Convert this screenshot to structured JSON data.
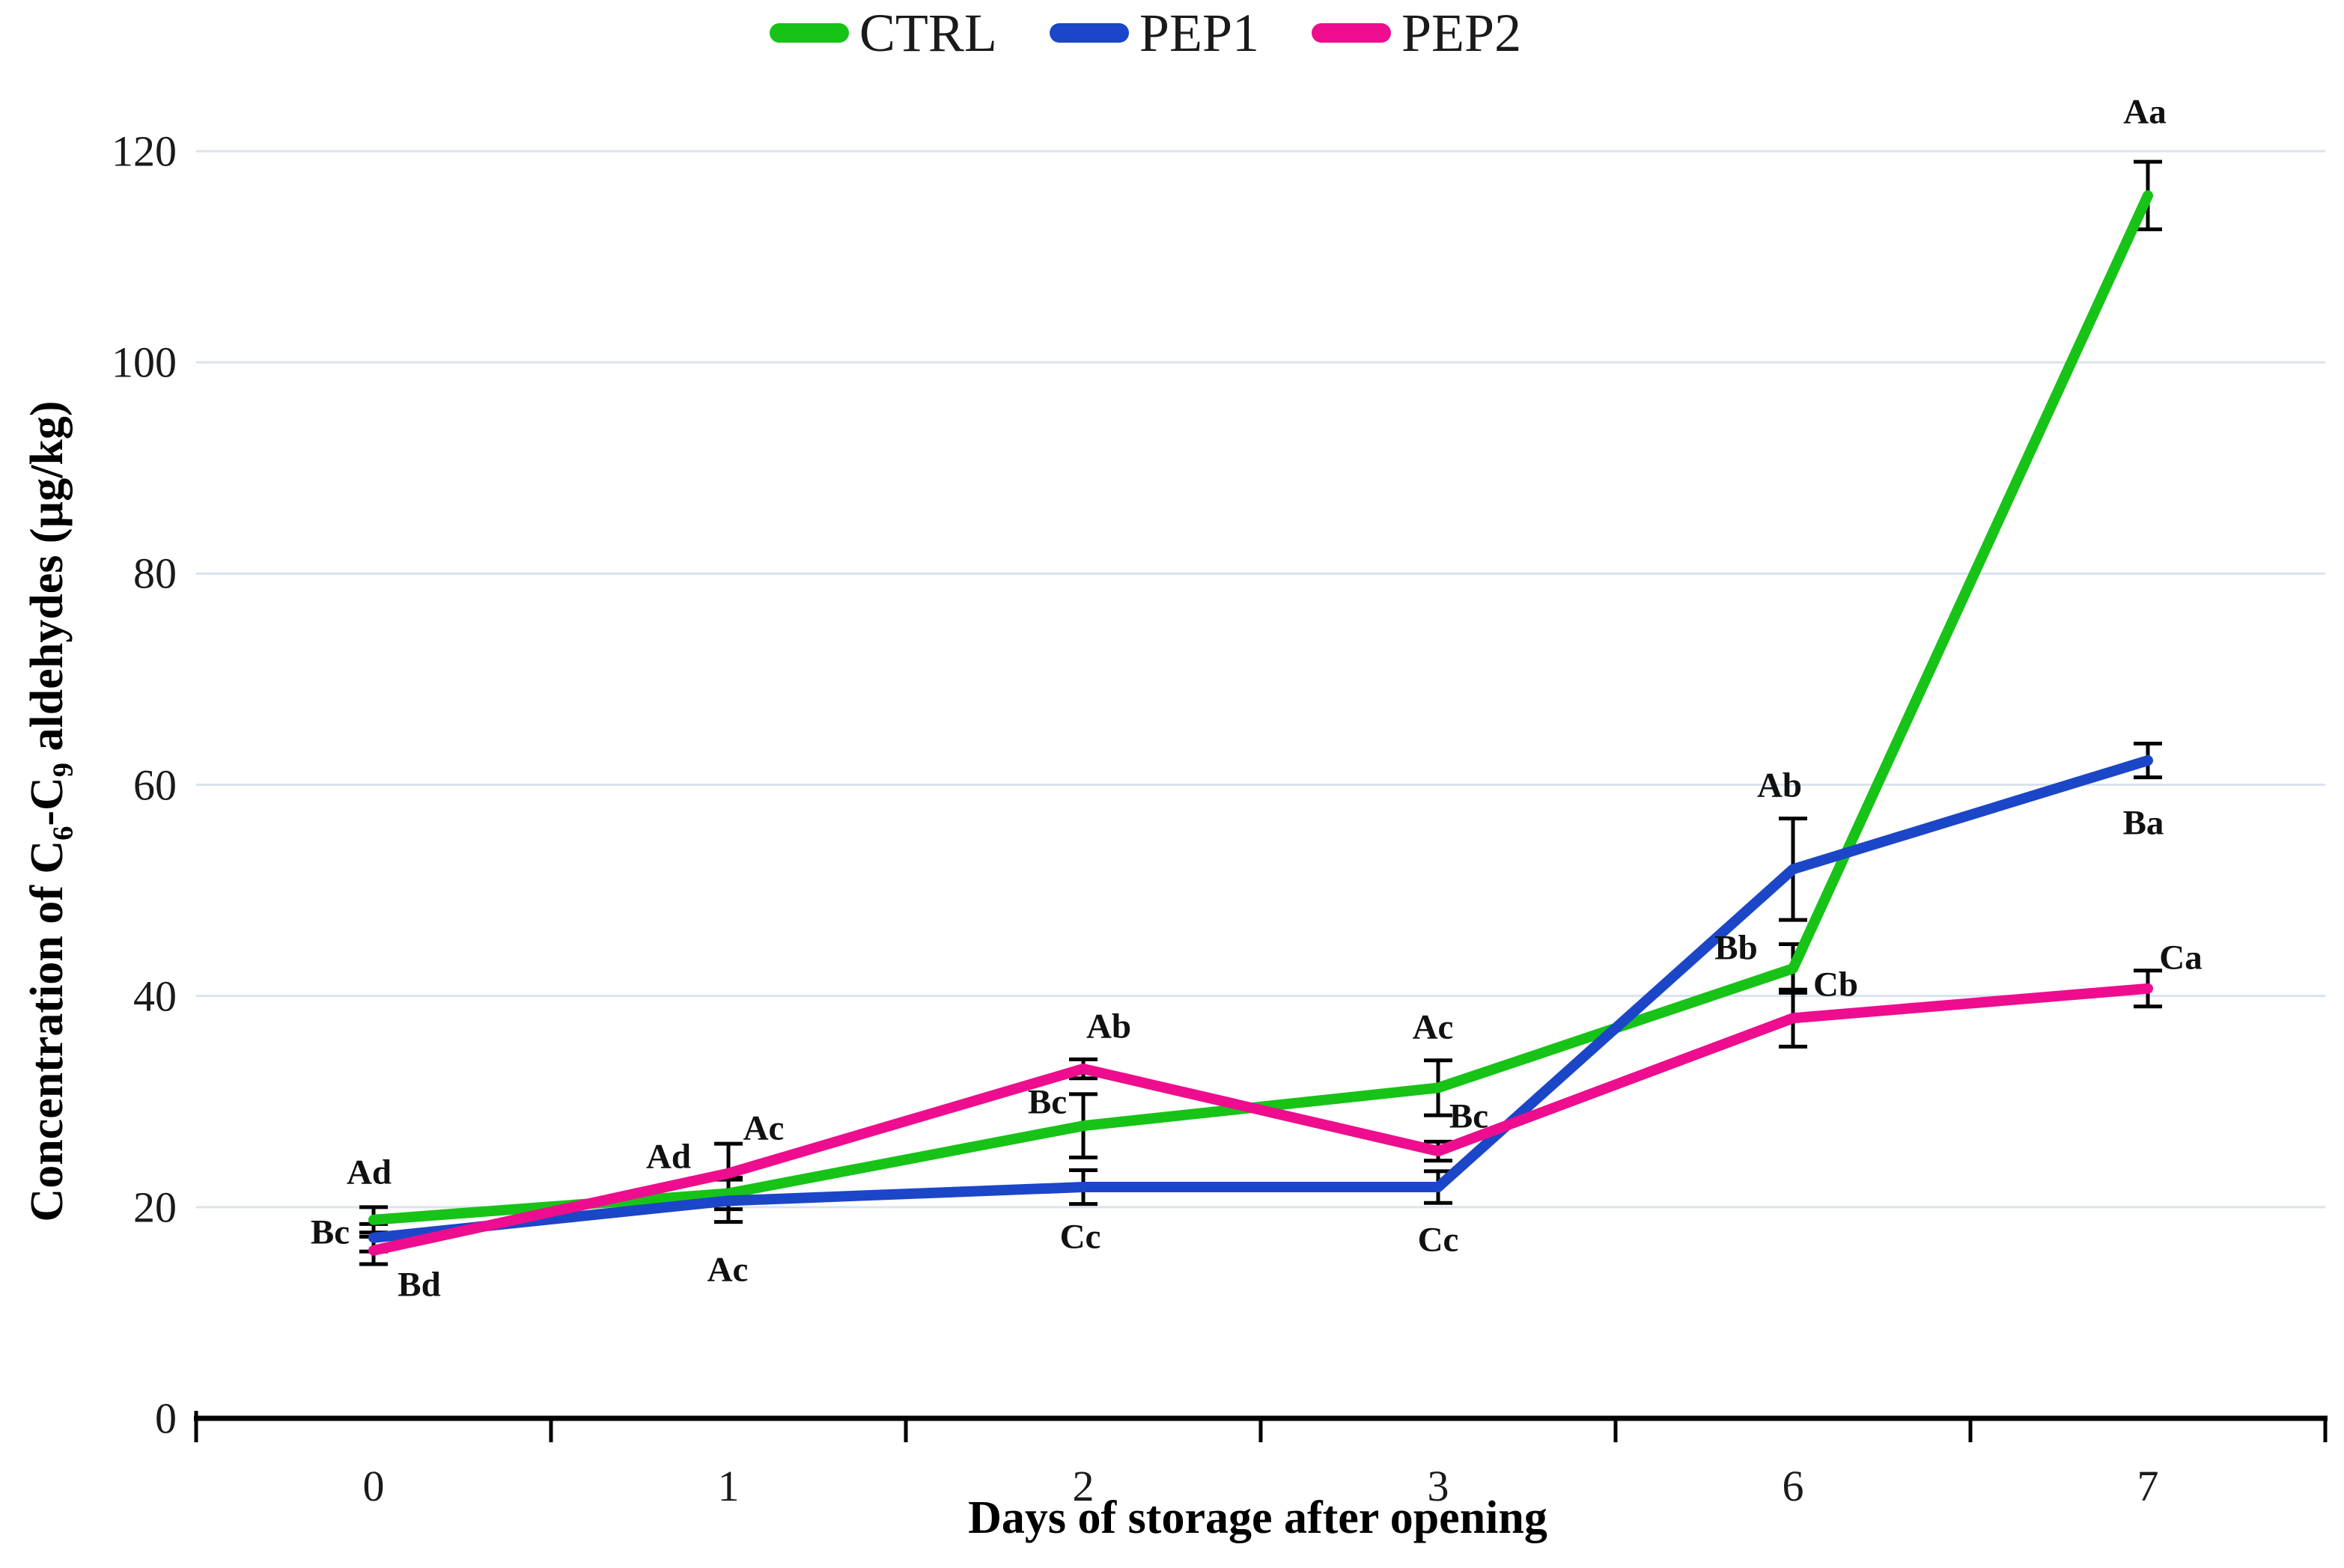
{
  "legend": {
    "items": [
      {
        "label": "CTRL",
        "color": "#17c317"
      },
      {
        "label": "PEP1",
        "color": "#1c46c8"
      },
      {
        "label": "PEP2",
        "color": "#ee0d8e"
      }
    ]
  },
  "axes": {
    "x_title": "Days of storage after opening",
    "y_title_pre": "Concentration of C",
    "y_title_sub1": "6",
    "y_title_mid": "-C",
    "y_title_sub2": "9",
    "y_title_post": " aldehydes (µg/kg)"
  },
  "chart_data": {
    "type": "line",
    "title": "",
    "xlabel": "Days of storage after opening",
    "ylabel": "Concentration of C6-C9 aldehydes (µg/kg)",
    "categories": [
      "0",
      "1",
      "2",
      "3",
      "6",
      "7"
    ],
    "ylim": [
      0,
      120
    ],
    "yticks": [
      0,
      20,
      40,
      60,
      80,
      100,
      120
    ],
    "grid": "horizontal-only",
    "gridline_color": "#dae3ee",
    "axis_color": "#000000",
    "error_bar_color": "#000000",
    "legend_position": "top-center",
    "series": [
      {
        "name": "CTRL",
        "color": "#17c317",
        "values": [
          18.8,
          21.3,
          27.7,
          31.3,
          42.6,
          115.8
        ],
        "errors": [
          1.2,
          1.5,
          3.0,
          2.6,
          2.3,
          3.2
        ],
        "point_labels": [
          "Ad",
          "Ad",
          "Bc",
          "Ac",
          "Bb",
          "Aa"
        ]
      },
      {
        "name": "PEP1",
        "color": "#1c46c8",
        "values": [
          17.1,
          20.6,
          21.9,
          21.9,
          52.0,
          62.3
        ],
        "errors": [
          1.3,
          2.0,
          1.6,
          1.5,
          4.8,
          1.6
        ],
        "point_labels": [
          "Bc",
          "Ac",
          "Cc",
          "Cc",
          "Ab",
          "Ba"
        ]
      },
      {
        "name": "PEP2",
        "color": "#ee0d8e",
        "values": [
          15.9,
          23.2,
          33.1,
          25.3,
          37.9,
          40.7
        ],
        "errors": [
          1.3,
          2.8,
          0.9,
          0.9,
          2.7,
          1.7
        ],
        "point_labels": [
          "Bd",
          "Ac",
          "Ab",
          "Bc",
          "Cb",
          "Ca"
        ]
      }
    ]
  }
}
